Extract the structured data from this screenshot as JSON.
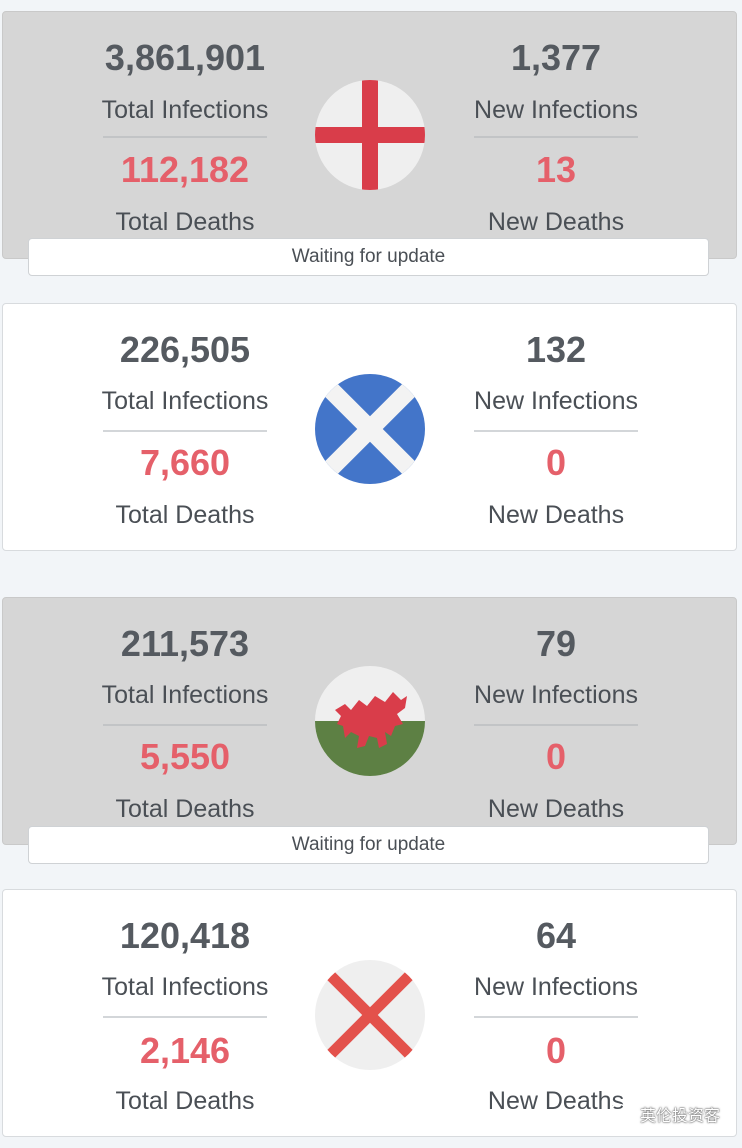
{
  "cards": [
    {
      "flag_icon": "england-flag-icon",
      "total_infections": "3,861,901",
      "total_infections_label": "Total Infections",
      "total_deaths": "112,182",
      "total_deaths_label": "Total Deaths",
      "new_infections": "1,377",
      "new_infections_label": "New Infections",
      "new_deaths": "13",
      "new_deaths_label": "New Deaths",
      "status": "Waiting for update"
    },
    {
      "flag_icon": "scotland-flag-icon",
      "total_infections": "226,505",
      "total_infections_label": "Total Infections",
      "total_deaths": "7,660",
      "total_deaths_label": "Total Deaths",
      "new_infections": "132",
      "new_infections_label": "New Infections",
      "new_deaths": "0",
      "new_deaths_label": "New Deaths"
    },
    {
      "flag_icon": "wales-flag-icon",
      "total_infections": "211,573",
      "total_infections_label": "Total Infections",
      "total_deaths": "5,550",
      "total_deaths_label": "Total Deaths",
      "new_infections": "79",
      "new_infections_label": "New Infections",
      "new_deaths": "0",
      "new_deaths_label": "New Deaths",
      "status": "Waiting for update"
    },
    {
      "flag_icon": "northern-ireland-saltire-icon",
      "total_infections": "120,418",
      "total_infections_label": "Total Infections",
      "total_deaths": "2,146",
      "total_deaths_label": "Total Deaths",
      "new_infections": "64",
      "new_infections_label": "New Infections",
      "new_deaths": "0",
      "new_deaths_label": "New Deaths"
    }
  ],
  "watermark": {
    "icon": "wechat-icon",
    "text": "英伦投资客"
  },
  "colors": {
    "number": "#555a60",
    "deaths": "#e5606a",
    "pending_card": "#d6d6d6",
    "card": "#ffffff",
    "page_background": "#f2f5f8"
  }
}
